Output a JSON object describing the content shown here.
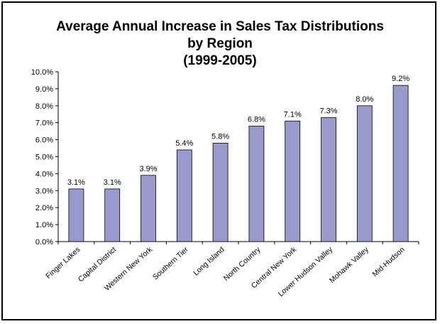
{
  "chart_data": {
    "type": "bar",
    "title": [
      "Average Annual Increase in Sales Tax Distributions",
      "by Region",
      "(1999-2005)"
    ],
    "xlabel": "",
    "ylabel": "",
    "categories": [
      "Finger Lakes",
      "Capital District",
      "Western New York",
      "Southern Tier",
      "Long Island",
      "North Country",
      "Central New York",
      "Lower Hudson Valley",
      "Mohawk Valley",
      "Mid-Hudson"
    ],
    "values": [
      3.1,
      3.1,
      3.9,
      5.4,
      5.8,
      6.8,
      7.1,
      7.3,
      8.0,
      9.2
    ],
    "value_labels": [
      "3.1%",
      "3.1%",
      "3.9%",
      "5.4%",
      "5.8%",
      "6.8%",
      "7.1%",
      "7.3%",
      "8.0%",
      "9.2%"
    ],
    "ylim": [
      0,
      10
    ],
    "ytick_labels": [
      "0.0%",
      "1.0%",
      "2.0%",
      "3.0%",
      "4.0%",
      "5.0%",
      "6.0%",
      "7.0%",
      "8.0%",
      "9.0%",
      "10.0%"
    ],
    "grid": false,
    "legend": "none",
    "colors": {
      "bar": "#9999cc",
      "bar_edge": "#000000",
      "axis": "#000000"
    }
  }
}
